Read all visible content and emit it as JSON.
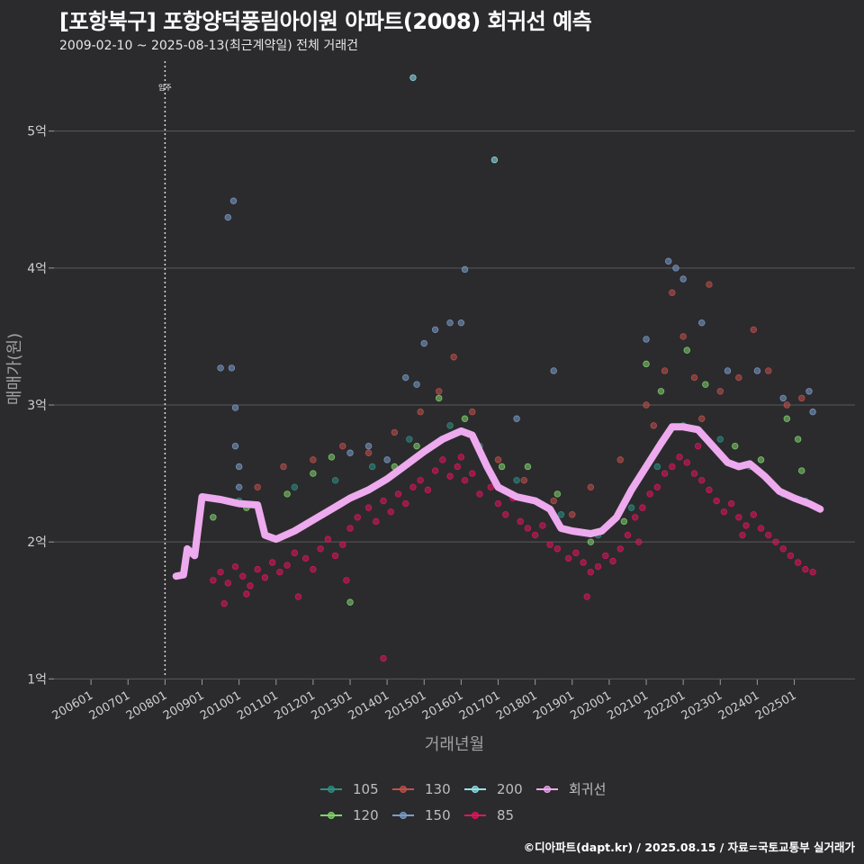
{
  "header": {
    "title": "[포항북구] 포항양덕풍림아이원 아파트(2008) 회귀선 예측",
    "subtitle": "2009-02-10 ~ 2025-08-13(최근계약일) 전체 거래건"
  },
  "footer": "©디아파트(dapt.kr) / 2025.08.15 / 자료=국토교통부 실거래가",
  "colors": {
    "background": "#2b2b2d",
    "grid": "#5a5a5a",
    "s105": "#2f8f83",
    "s120": "#7fd36b",
    "s130": "#c0504d",
    "s150": "#7b9cc8",
    "s200": "#8fe3e8",
    "s85": "#e0145f",
    "regression": "#eeaaee"
  },
  "chart_data": {
    "type": "scatter",
    "title": "[포항북구] 포항양덕풍림아이원 아파트(2008) 회귀선 예측",
    "xlabel": "거래년월",
    "ylabel": "매매가(원)",
    "xlim": [
      "2005-01",
      "2026-08"
    ],
    "ylim": [
      0.93,
      5.53
    ],
    "x_ticks": [
      "200601",
      "200701",
      "200801",
      "200901",
      "201001",
      "201101",
      "201201",
      "201301",
      "201401",
      "201501",
      "201601",
      "201701",
      "201801",
      "201901",
      "202001",
      "202101",
      "202201",
      "202301",
      "202401",
      "202501"
    ],
    "y_ticks": [
      {
        "value": 1,
        "label": "1억"
      },
      {
        "value": 2,
        "label": "2억"
      },
      {
        "value": 3,
        "label": "3억"
      },
      {
        "value": 4,
        "label": "4억"
      },
      {
        "value": 5,
        "label": "5억"
      }
    ],
    "annotation": {
      "x": 2008.0,
      "label": "입주"
    },
    "legend": {
      "position": "bottom",
      "entries": [
        "105",
        "130",
        "200",
        "회귀선",
        "120",
        "150",
        "85"
      ]
    },
    "series": [
      {
        "name": "85",
        "color_key": "s85",
        "points": [
          [
            2009.3,
            1.72
          ],
          [
            2009.5,
            1.78
          ],
          [
            2009.7,
            1.7
          ],
          [
            2009.9,
            1.82
          ],
          [
            2010.1,
            1.75
          ],
          [
            2010.3,
            1.68
          ],
          [
            2010.5,
            1.8
          ],
          [
            2010.7,
            1.74
          ],
          [
            2010.9,
            1.85
          ],
          [
            2011.1,
            1.78
          ],
          [
            2011.3,
            1.83
          ],
          [
            2011.5,
            1.92
          ],
          [
            2011.8,
            1.88
          ],
          [
            2012.0,
            1.8
          ],
          [
            2012.2,
            1.95
          ],
          [
            2012.4,
            2.02
          ],
          [
            2012.6,
            1.9
          ],
          [
            2012.8,
            1.98
          ],
          [
            2013.0,
            2.1
          ],
          [
            2013.2,
            2.18
          ],
          [
            2013.5,
            2.25
          ],
          [
            2013.7,
            2.15
          ],
          [
            2013.9,
            2.3
          ],
          [
            2014.1,
            2.22
          ],
          [
            2014.3,
            2.35
          ],
          [
            2014.5,
            2.28
          ],
          [
            2014.7,
            2.4
          ],
          [
            2014.9,
            2.45
          ],
          [
            2015.1,
            2.38
          ],
          [
            2015.3,
            2.52
          ],
          [
            2015.5,
            2.6
          ],
          [
            2015.7,
            2.48
          ],
          [
            2015.9,
            2.55
          ],
          [
            2016.1,
            2.45
          ],
          [
            2016.3,
            2.5
          ],
          [
            2016.5,
            2.35
          ],
          [
            2016.8,
            2.4
          ],
          [
            2017.0,
            2.28
          ],
          [
            2017.2,
            2.2
          ],
          [
            2017.4,
            2.32
          ],
          [
            2017.6,
            2.15
          ],
          [
            2017.8,
            2.1
          ],
          [
            2018.0,
            2.05
          ],
          [
            2018.2,
            2.12
          ],
          [
            2018.4,
            1.98
          ],
          [
            2018.6,
            1.95
          ],
          [
            2018.9,
            1.88
          ],
          [
            2019.1,
            1.92
          ],
          [
            2019.3,
            1.85
          ],
          [
            2019.5,
            1.78
          ],
          [
            2019.7,
            1.82
          ],
          [
            2019.9,
            1.9
          ],
          [
            2020.1,
            1.86
          ],
          [
            2020.3,
            1.95
          ],
          [
            2020.5,
            2.05
          ],
          [
            2020.7,
            2.18
          ],
          [
            2020.9,
            2.25
          ],
          [
            2021.1,
            2.35
          ],
          [
            2021.3,
            2.4
          ],
          [
            2021.5,
            2.5
          ],
          [
            2021.7,
            2.55
          ],
          [
            2021.9,
            2.62
          ],
          [
            2022.1,
            2.58
          ],
          [
            2022.3,
            2.5
          ],
          [
            2022.5,
            2.45
          ],
          [
            2022.7,
            2.38
          ],
          [
            2022.9,
            2.3
          ],
          [
            2023.1,
            2.22
          ],
          [
            2023.3,
            2.28
          ],
          [
            2023.5,
            2.18
          ],
          [
            2023.7,
            2.12
          ],
          [
            2023.9,
            2.2
          ],
          [
            2024.1,
            2.1
          ],
          [
            2024.3,
            2.05
          ],
          [
            2024.5,
            2.0
          ],
          [
            2024.7,
            1.95
          ],
          [
            2024.9,
            1.9
          ],
          [
            2025.1,
            1.85
          ],
          [
            2025.3,
            1.8
          ],
          [
            2025.5,
            1.78
          ],
          [
            2009.6,
            1.55
          ],
          [
            2010.2,
            1.62
          ],
          [
            2011.6,
            1.6
          ],
          [
            2012.9,
            1.72
          ],
          [
            2013.9,
            1.15
          ],
          [
            2016.0,
            2.62
          ],
          [
            2019.4,
            1.6
          ],
          [
            2022.4,
            2.7
          ],
          [
            2020.8,
            2.0
          ],
          [
            2023.6,
            2.05
          ]
        ]
      },
      {
        "name": "130",
        "color_key": "s130",
        "points": [
          [
            2010.5,
            2.4
          ],
          [
            2011.2,
            2.55
          ],
          [
            2012.0,
            2.6
          ],
          [
            2012.8,
            2.7
          ],
          [
            2013.5,
            2.65
          ],
          [
            2014.2,
            2.8
          ],
          [
            2014.9,
            2.95
          ],
          [
            2015.4,
            3.1
          ],
          [
            2015.8,
            3.35
          ],
          [
            2016.3,
            2.95
          ],
          [
            2017.0,
            2.6
          ],
          [
            2017.7,
            2.45
          ],
          [
            2018.5,
            2.3
          ],
          [
            2019.5,
            2.4
          ],
          [
            2020.3,
            2.6
          ],
          [
            2021.0,
            3.0
          ],
          [
            2021.5,
            3.25
          ],
          [
            2021.7,
            3.82
          ],
          [
            2022.0,
            3.5
          ],
          [
            2022.3,
            3.2
          ],
          [
            2022.7,
            3.88
          ],
          [
            2023.0,
            3.1
          ],
          [
            2023.5,
            3.2
          ],
          [
            2023.9,
            3.55
          ],
          [
            2024.3,
            3.25
          ],
          [
            2024.8,
            3.0
          ],
          [
            2025.2,
            3.05
          ],
          [
            2021.2,
            2.85
          ],
          [
            2022.5,
            2.9
          ],
          [
            2019.0,
            2.2
          ]
        ]
      },
      {
        "name": "150",
        "color_key": "s150",
        "points": [
          [
            2009.5,
            3.27
          ],
          [
            2009.8,
            3.27
          ],
          [
            2009.9,
            2.98
          ],
          [
            2010.0,
            2.55
          ],
          [
            2009.9,
            2.7
          ],
          [
            2010.0,
            2.4
          ],
          [
            2013.0,
            2.65
          ],
          [
            2013.5,
            2.7
          ],
          [
            2014.0,
            2.6
          ],
          [
            2014.5,
            3.2
          ],
          [
            2015.0,
            3.45
          ],
          [
            2015.3,
            3.55
          ],
          [
            2015.7,
            3.6
          ],
          [
            2016.0,
            3.6
          ],
          [
            2016.1,
            3.99
          ],
          [
            2017.5,
            2.9
          ],
          [
            2018.5,
            3.25
          ],
          [
            2021.0,
            3.48
          ],
          [
            2021.6,
            4.05
          ],
          [
            2021.8,
            4.0
          ],
          [
            2022.0,
            3.92
          ],
          [
            2022.5,
            3.6
          ],
          [
            2023.2,
            3.25
          ],
          [
            2024.0,
            3.25
          ],
          [
            2024.7,
            3.05
          ],
          [
            2025.4,
            3.1
          ],
          [
            2025.5,
            2.95
          ],
          [
            2009.7,
            4.37
          ],
          [
            2009.85,
            4.49
          ],
          [
            2014.8,
            3.15
          ]
        ]
      },
      {
        "name": "120",
        "color_key": "s120",
        "points": [
          [
            2009.3,
            2.18
          ],
          [
            2010.2,
            2.25
          ],
          [
            2011.3,
            2.35
          ],
          [
            2012.0,
            2.5
          ],
          [
            2012.5,
            2.62
          ],
          [
            2013.0,
            1.56
          ],
          [
            2014.2,
            2.55
          ],
          [
            2014.8,
            2.7
          ],
          [
            2015.4,
            3.05
          ],
          [
            2016.1,
            2.9
          ],
          [
            2017.1,
            2.55
          ],
          [
            2017.8,
            2.55
          ],
          [
            2018.6,
            2.35
          ],
          [
            2019.5,
            2.0
          ],
          [
            2020.4,
            2.15
          ],
          [
            2021.0,
            3.3
          ],
          [
            2021.4,
            3.1
          ],
          [
            2022.1,
            3.4
          ],
          [
            2022.6,
            3.15
          ],
          [
            2023.4,
            2.7
          ],
          [
            2024.1,
            2.6
          ],
          [
            2024.8,
            2.9
          ],
          [
            2025.1,
            2.75
          ],
          [
            2025.2,
            2.52
          ]
        ]
      },
      {
        "name": "105",
        "color_key": "s105",
        "points": [
          [
            2010.0,
            2.3
          ],
          [
            2011.5,
            2.4
          ],
          [
            2012.6,
            2.45
          ],
          [
            2013.6,
            2.55
          ],
          [
            2014.6,
            2.75
          ],
          [
            2015.7,
            2.85
          ],
          [
            2016.5,
            2.7
          ],
          [
            2017.5,
            2.45
          ],
          [
            2018.7,
            2.2
          ],
          [
            2019.7,
            2.05
          ],
          [
            2020.6,
            2.25
          ],
          [
            2021.3,
            2.55
          ],
          [
            2022.0,
            2.85
          ],
          [
            2023.0,
            2.75
          ],
          [
            2023.8,
            2.55
          ],
          [
            2024.7,
            2.35
          ],
          [
            2025.3,
            2.3
          ]
        ]
      },
      {
        "name": "200",
        "color_key": "s200",
        "points": [
          [
            2014.7,
            5.39
          ],
          [
            2016.9,
            4.79
          ]
        ]
      },
      {
        "name": "회귀선",
        "color_key": "regression",
        "type": "line",
        "points": [
          [
            2008.3,
            1.75
          ],
          [
            2008.5,
            1.76
          ],
          [
            2008.6,
            1.95
          ],
          [
            2008.8,
            1.9
          ],
          [
            2009.0,
            2.33
          ],
          [
            2009.5,
            2.31
          ],
          [
            2010.0,
            2.28
          ],
          [
            2010.5,
            2.27
          ],
          [
            2010.7,
            2.05
          ],
          [
            2011.0,
            2.02
          ],
          [
            2011.5,
            2.08
          ],
          [
            2012.0,
            2.16
          ],
          [
            2012.5,
            2.24
          ],
          [
            2013.0,
            2.32
          ],
          [
            2013.5,
            2.38
          ],
          [
            2014.0,
            2.46
          ],
          [
            2014.5,
            2.56
          ],
          [
            2015.0,
            2.66
          ],
          [
            2015.5,
            2.75
          ],
          [
            2016.0,
            2.81
          ],
          [
            2016.3,
            2.78
          ],
          [
            2016.7,
            2.55
          ],
          [
            2017.0,
            2.4
          ],
          [
            2017.5,
            2.33
          ],
          [
            2018.0,
            2.3
          ],
          [
            2018.4,
            2.24
          ],
          [
            2018.7,
            2.1
          ],
          [
            2019.0,
            2.08
          ],
          [
            2019.5,
            2.06
          ],
          [
            2019.8,
            2.08
          ],
          [
            2020.2,
            2.18
          ],
          [
            2020.6,
            2.38
          ],
          [
            2021.0,
            2.55
          ],
          [
            2021.4,
            2.72
          ],
          [
            2021.7,
            2.84
          ],
          [
            2022.0,
            2.84
          ],
          [
            2022.4,
            2.82
          ],
          [
            2022.8,
            2.7
          ],
          [
            2023.2,
            2.58
          ],
          [
            2023.5,
            2.55
          ],
          [
            2023.8,
            2.57
          ],
          [
            2024.2,
            2.48
          ],
          [
            2024.6,
            2.37
          ],
          [
            2025.0,
            2.32
          ],
          [
            2025.4,
            2.28
          ],
          [
            2025.7,
            2.24
          ]
        ]
      }
    ]
  }
}
